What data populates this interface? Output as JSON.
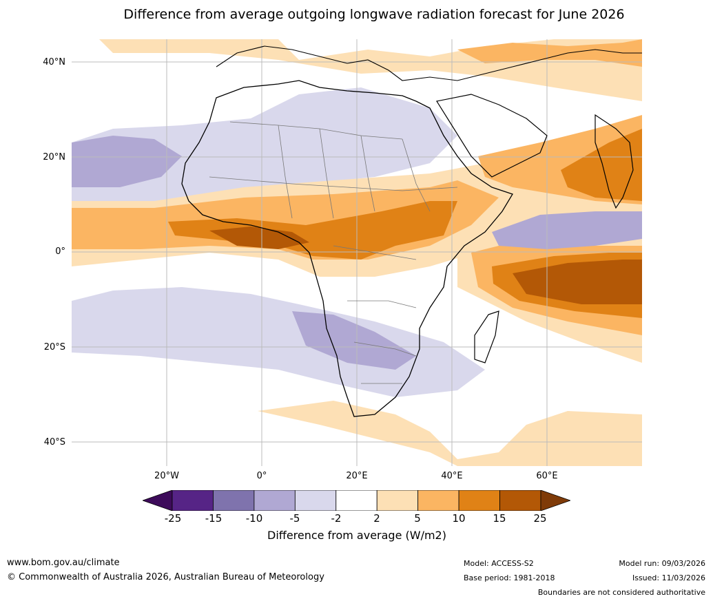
{
  "title": "Difference from average outgoing longwave radiation forecast for June 2026",
  "map": {
    "region": "Africa",
    "lat_labels": [
      "40°N",
      "20°N",
      "0°",
      "20°S",
      "40°S"
    ],
    "lon_labels": [
      "20°W",
      "0°",
      "20°E",
      "40°E",
      "60°E"
    ],
    "variable": "Outgoing longwave radiation difference from average"
  },
  "colorbar": {
    "ticks": [
      "-25",
      "-15",
      "-10",
      "-5",
      "-2",
      "2",
      "5",
      "10",
      "15",
      "25"
    ],
    "colors": [
      "#3d0b5a",
      "#562486",
      "#7f73ad",
      "#b0a8d3",
      "#d9d8ec",
      "#ffffff",
      "#fde0b5",
      "#fbb562",
      "#e08216",
      "#b35806",
      "#7f3b08"
    ],
    "label": "Difference from average (W/m2)"
  },
  "footer": {
    "website": "www.bom.gov.au/climate",
    "copyright": "© Commonwealth of Australia 2026, Australian Bureau of Meteorology",
    "model": "Model: ACCESS-S2",
    "base_period": "Base period: 1981-2018",
    "model_run": "Model run: 09/03/2026",
    "issued": "Issued: 11/03/2026",
    "disclaimer": "Boundaries are not considered authoritative"
  }
}
